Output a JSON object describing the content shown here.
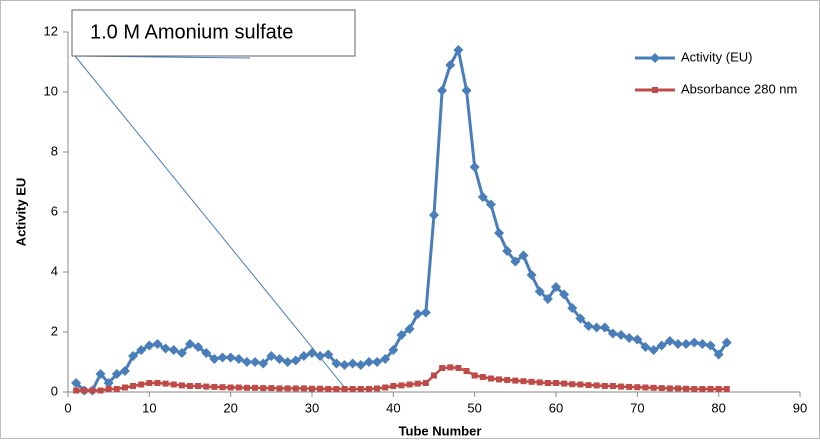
{
  "chart_data": {
    "type": "line",
    "x_label": "Tube Number",
    "y_label": "Activity EU",
    "annotation": "1.0 M Amonium sulfate",
    "x": [
      1,
      2,
      3,
      4,
      5,
      6,
      7,
      8,
      9,
      10,
      11,
      12,
      13,
      14,
      15,
      16,
      17,
      18,
      19,
      20,
      21,
      22,
      23,
      24,
      25,
      26,
      27,
      28,
      29,
      30,
      31,
      32,
      33,
      34,
      35,
      36,
      37,
      38,
      39,
      40,
      41,
      42,
      43,
      44,
      45,
      46,
      47,
      48,
      49,
      50,
      51,
      52,
      53,
      54,
      55,
      56,
      57,
      58,
      59,
      60,
      61,
      62,
      63,
      64,
      65,
      66,
      67,
      68,
      69,
      70,
      71,
      72,
      73,
      74,
      75,
      76,
      77,
      78,
      79,
      80,
      81
    ],
    "series": [
      {
        "name": "Activity (EU)",
        "color": "#4a7ebb",
        "marker": "diamond",
        "values": [
          0.3,
          0.05,
          0.05,
          0.6,
          0.3,
          0.6,
          0.7,
          1.2,
          1.4,
          1.55,
          1.6,
          1.45,
          1.4,
          1.3,
          1.6,
          1.5,
          1.3,
          1.1,
          1.15,
          1.15,
          1.1,
          1.0,
          1.0,
          0.95,
          1.2,
          1.1,
          1.0,
          1.05,
          1.2,
          1.3,
          1.2,
          1.25,
          0.95,
          0.9,
          0.95,
          0.9,
          1.0,
          1.0,
          1.1,
          1.4,
          1.9,
          2.1,
          2.6,
          2.65,
          5.9,
          10.05,
          10.9,
          11.4,
          10.05,
          7.5,
          6.5,
          6.25,
          5.3,
          4.7,
          4.35,
          4.55,
          3.9,
          3.35,
          3.1,
          3.5,
          3.25,
          2.8,
          2.45,
          2.2,
          2.15,
          2.15,
          1.95,
          1.9,
          1.8,
          1.75,
          1.5,
          1.4,
          1.55,
          1.7,
          1.6,
          1.6,
          1.65,
          1.6,
          1.55,
          1.25,
          1.65
        ]
      },
      {
        "name": "Absorbance 280 nm",
        "color": "#be4b48",
        "marker": "square",
        "values": [
          0.05,
          0.05,
          0.05,
          0.05,
          0.1,
          0.1,
          0.15,
          0.2,
          0.25,
          0.3,
          0.3,
          0.28,
          0.25,
          0.22,
          0.2,
          0.2,
          0.18,
          0.17,
          0.16,
          0.15,
          0.15,
          0.14,
          0.14,
          0.13,
          0.13,
          0.12,
          0.12,
          0.12,
          0.12,
          0.11,
          0.11,
          0.1,
          0.1,
          0.1,
          0.1,
          0.1,
          0.1,
          0.12,
          0.15,
          0.2,
          0.22,
          0.25,
          0.28,
          0.3,
          0.55,
          0.8,
          0.82,
          0.8,
          0.7,
          0.55,
          0.5,
          0.45,
          0.42,
          0.4,
          0.38,
          0.36,
          0.34,
          0.32,
          0.3,
          0.3,
          0.28,
          0.26,
          0.25,
          0.23,
          0.22,
          0.2,
          0.2,
          0.18,
          0.17,
          0.16,
          0.15,
          0.14,
          0.13,
          0.12,
          0.12,
          0.11,
          0.1,
          0.1,
          0.1,
          0.1,
          0.1
        ]
      }
    ],
    "xlim": [
      0,
      90
    ],
    "xticks": [
      0,
      10,
      20,
      30,
      40,
      50,
      60,
      70,
      80,
      90
    ],
    "ylim": [
      0,
      12
    ],
    "yticks": [
      0,
      2,
      4,
      6,
      8,
      10,
      12
    ],
    "grid": false,
    "legend": "upper-right"
  }
}
